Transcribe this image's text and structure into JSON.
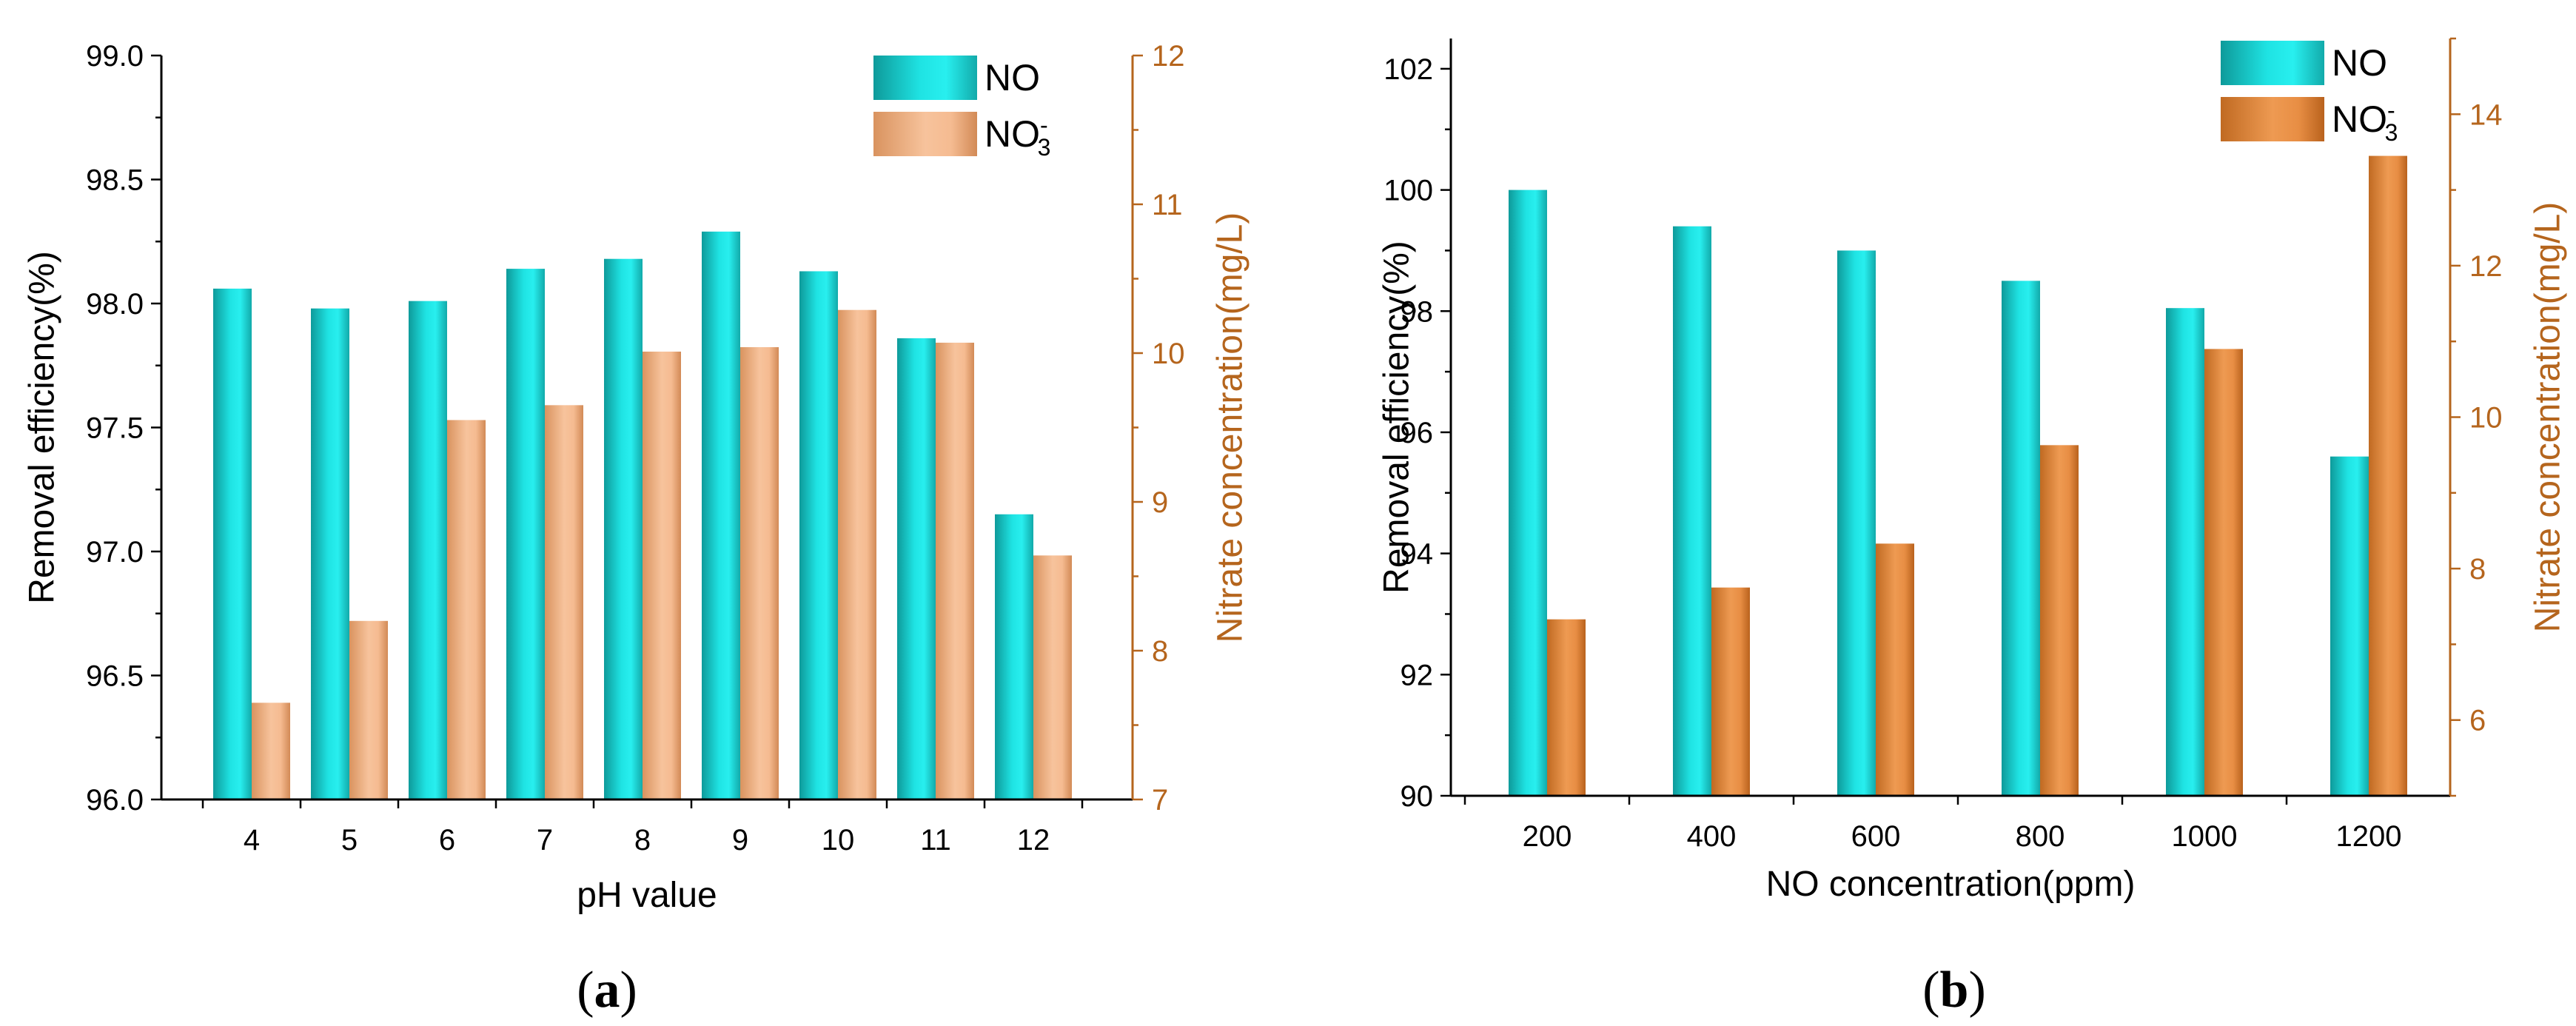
{
  "figure": {
    "captions": [
      {
        "open": "(",
        "letter": "a",
        "close": ")"
      },
      {
        "open": "(",
        "letter": "b",
        "close": ")"
      }
    ]
  },
  "colors": {
    "no_bar": "#1ecfcf",
    "no3_bar_a": "#f2b58c",
    "no3_bar_b": "#e08840",
    "right_axis": "#b5651d",
    "axis": "#000000"
  },
  "chart_data": [
    {
      "type": "bar",
      "panel": "a",
      "categories": [
        "4",
        "5",
        "6",
        "7",
        "8",
        "9",
        "10",
        "11",
        "12"
      ],
      "xlabel": "pH value",
      "ylabel": "Removal efficiency(%)",
      "y2label": "Nitrate concentration(mg/L)",
      "ylim": [
        96.0,
        99.0
      ],
      "y2lim": [
        7,
        12
      ],
      "yticks": [
        "96.0",
        "96.5",
        "97.0",
        "97.5",
        "98.0",
        "98.5",
        "99.0"
      ],
      "y2ticks": [
        "7",
        "8",
        "9",
        "10",
        "11",
        "12"
      ],
      "legend_position": "top-right",
      "series": [
        {
          "name": "NO",
          "axis": "left",
          "values": [
            98.06,
            97.98,
            98.01,
            98.14,
            98.18,
            98.29,
            98.13,
            97.86,
            97.15
          ]
        },
        {
          "name": "NO3-",
          "name_main": "NO",
          "name_sub": "3",
          "name_sup": "-",
          "axis": "right",
          "values": [
            7.65,
            8.2,
            9.55,
            9.65,
            10.01,
            10.04,
            10.29,
            10.07,
            8.64
          ]
        }
      ]
    },
    {
      "type": "bar",
      "panel": "b",
      "categories": [
        "200",
        "400",
        "600",
        "800",
        "1000",
        "1200"
      ],
      "xlabel": "NO concentration(ppm)",
      "ylabel": "Removal efficiency(%)",
      "y2label": "Nitrate concentration(mg/L)",
      "ylim": [
        90,
        102.5
      ],
      "y2lim": [
        5,
        15
      ],
      "yticks": [
        "90",
        "92",
        "94",
        "96",
        "98",
        "100",
        "102"
      ],
      "y2ticks": [
        "6",
        "8",
        "10",
        "12",
        "14"
      ],
      "legend_position": "top-right",
      "series": [
        {
          "name": "NO",
          "axis": "left",
          "values": [
            100.0,
            99.4,
            99.0,
            98.5,
            98.05,
            95.6
          ]
        },
        {
          "name": "NO3-",
          "name_main": "NO",
          "name_sub": "3",
          "name_sup": "-",
          "axis": "right",
          "values": [
            7.33,
            7.75,
            8.33,
            9.63,
            10.9,
            13.45
          ]
        }
      ]
    }
  ]
}
